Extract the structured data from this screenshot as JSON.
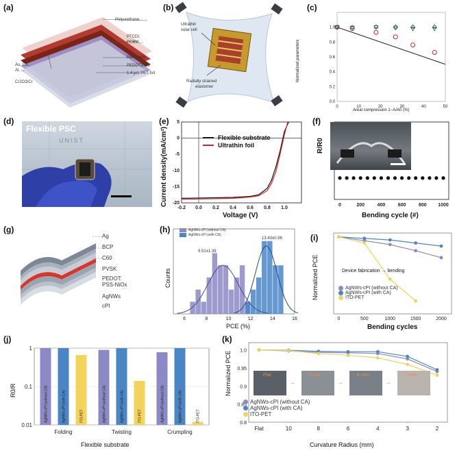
{
  "panels": {
    "a": {
      "label": "(a)",
      "layers": [
        "Polyurethane",
        "PTCDI,",
        "PCBM,...",
        "Perovskite",
        "PEDOT:PSS",
        "1.4 μm PET foil"
      ],
      "electrodes": [
        "Au, Cu,",
        "Al, ...",
        "Cr2O3/Cr"
      ]
    },
    "b": {
      "label": "(b)",
      "texts": [
        "Ultrathin",
        "solar cell",
        "Radially strained",
        "elastomer"
      ]
    },
    "c": {
      "label": "(c)",
      "ylabel": "Normalized parameters",
      "xlabel": "Areal compression 1−A/A0 (%)"
    },
    "d": {
      "label": "(d)",
      "title": "Flexible PSC",
      "watermark": "UNIST"
    },
    "e": {
      "label": "(e)",
      "ylabel": "Current density(mA/cm²)",
      "xlabel": "Voltage (V)",
      "legend": [
        "Flexible substrate",
        "Ultrathin foil"
      ]
    },
    "f": {
      "label": "(f)",
      "ylabel": "R/R0",
      "xlabel": "Bending cycle (#)"
    },
    "g": {
      "label": "(g)",
      "layers": [
        "Ag",
        "BCP",
        "C60",
        "PVSK",
        "PEDOT:",
        "PSS-NiOx",
        "AgNWs",
        "cPI"
      ]
    },
    "h": {
      "label": "(h)",
      "ylabel": "Counts",
      "xlabel": "PCE (%)",
      "legend": [
        "AgNWs-cPI (without CA)",
        "AgNWs-cPI (with CA)"
      ],
      "annot": [
        "9.51±1.39",
        "13.43±0.98"
      ]
    },
    "i": {
      "label": "(i)",
      "ylabel": "Normalized PCE",
      "xlabel": "Bending cycles",
      "annot": "Device fabrication → bending",
      "legend": [
        "AgNWs-cPI (without CA)",
        "AgNWs-cPI (with CA)",
        "ITO-PET"
      ]
    },
    "j": {
      "label": "(j)",
      "ylabel": "R0/R",
      "xlabel": "Flexible substrate",
      "bar_labels": [
        "AgNWs-cPI (without CA)",
        "AgNWs-cPI (with CA)",
        "ITO-PET"
      ]
    },
    "k": {
      "label": "(k)",
      "ylabel": "Normalized PCE",
      "xlabel": "Curvature Radius (mm)",
      "insets": [
        "Flat",
        "8 mm",
        "4 mm",
        "2 mm"
      ],
      "legend": [
        "AgNWs-cPI (without CA)",
        "AgNWs-cPI (with CA)",
        "ITO-PET"
      ]
    }
  },
  "colors": {
    "red": "#d62728",
    "black": "#111111",
    "purple": "#8c89c6",
    "blue": "#4a86c5",
    "yellow": "#f3d35b",
    "gray": "#8a8f95"
  },
  "chart_data": [
    {
      "id": "c",
      "type": "scatter",
      "xlim": [
        0,
        50
      ],
      "ylim": [
        0,
        1.2
      ],
      "x_ticks": [
        0,
        5,
        10,
        15,
        20,
        25,
        30,
        35,
        40,
        45,
        50
      ],
      "y_ticks": [
        0,
        0.2,
        0.4,
        0.6,
        0.8,
        1.0
      ],
      "series": [
        {
          "marker": "line",
          "color": "#111111",
          "x": [
            0,
            50
          ],
          "y": [
            1.0,
            0.5
          ]
        },
        {
          "marker": "circle-open",
          "color": "#d62728",
          "x": [
            0,
            7,
            18,
            27,
            35,
            45
          ],
          "y": [
            1.0,
            0.98,
            0.93,
            0.87,
            0.76,
            0.66
          ]
        },
        {
          "marker": "triangle-open",
          "color": "#4caf50",
          "x": [
            0,
            7,
            18,
            27,
            35,
            45
          ],
          "y": [
            1.0,
            1.0,
            1.01,
            1.01,
            1.01,
            1.01
          ]
        },
        {
          "marker": "triangle-down-open",
          "color": "#1f3a8a",
          "x": [
            0,
            7,
            18,
            27,
            35,
            45
          ],
          "y": [
            1.0,
            0.99,
            1.0,
            0.99,
            0.98,
            0.98
          ]
        },
        {
          "marker": "square-open",
          "color": "#555555",
          "x": [
            0,
            7,
            18,
            27,
            35,
            45
          ],
          "y": [
            1.0,
            1.0,
            1.0,
            1.0,
            1.0,
            1.0
          ]
        }
      ]
    },
    {
      "id": "e",
      "type": "line",
      "xlim": [
        -0.2,
        1.2
      ],
      "ylim": [
        -20,
        5
      ],
      "x_ticks": [
        -0.2,
        0.0,
        0.2,
        0.4,
        0.6,
        0.8,
        1.0
      ],
      "y_ticks": [
        -20,
        -15,
        -10,
        -5,
        0,
        5
      ],
      "series": [
        {
          "name": "Flexible substrate",
          "color": "#111111",
          "x": [
            -0.2,
            0.0,
            0.2,
            0.4,
            0.6,
            0.7,
            0.8,
            0.85,
            0.9,
            0.95,
            1.0,
            1.05
          ],
          "y": [
            -18.6,
            -18.5,
            -18.4,
            -18.3,
            -18.0,
            -17.5,
            -15.5,
            -13.0,
            -9.0,
            -4.0,
            2.0,
            10
          ]
        },
        {
          "name": "Ultrathin foil",
          "color": "#d62728",
          "x": [
            -0.2,
            0.0,
            0.2,
            0.4,
            0.6,
            0.7,
            0.8,
            0.85,
            0.9,
            0.95,
            1.0,
            1.04
          ],
          "y": [
            -18.9,
            -18.8,
            -18.7,
            -18.6,
            -18.2,
            -17.8,
            -16.2,
            -14.0,
            -10.5,
            -5.0,
            1.0,
            10
          ]
        }
      ]
    },
    {
      "id": "f",
      "type": "scatter",
      "xlim": [
        0,
        1000
      ],
      "ylim": [
        0,
        4
      ],
      "x_ticks": [
        0,
        200,
        400,
        600,
        800,
        1000
      ],
      "y_ticks": [],
      "series": [
        {
          "color": "#111111",
          "x": [
            0,
            67,
            133,
            200,
            267,
            333,
            400,
            467,
            533,
            600,
            667,
            733,
            800,
            867,
            933,
            1000
          ],
          "y": [
            1,
            1,
            1,
            1,
            1,
            1,
            1,
            1,
            1,
            1,
            1,
            1,
            1,
            1,
            1,
            1
          ]
        }
      ]
    },
    {
      "id": "h",
      "type": "bar",
      "xlim": [
        5,
        16
      ],
      "ylim": [
        0,
        7
      ],
      "x_ticks": [
        6,
        8,
        10,
        12,
        14,
        16
      ],
      "y_ticks": [],
      "series": [
        {
          "name": "AgNWs-cPI (without CA)",
          "color": "#8c89c6",
          "bin_start": [
            6.5,
            7,
            7.5,
            8,
            8.5,
            9,
            9.5,
            10,
            10.5,
            11,
            11.5
          ],
          "counts": [
            1,
            2,
            1,
            3,
            5,
            4,
            4,
            2,
            3,
            4,
            1
          ]
        },
        {
          "name": "AgNWs-cPI (with CA)",
          "color": "#4a86c5",
          "bin_start": [
            11.5,
            12,
            12.5,
            13,
            13.5,
            14,
            14.5
          ],
          "counts": [
            1,
            2,
            3,
            6,
            6,
            4,
            4
          ]
        }
      ],
      "fits": [
        {
          "mean": 9.51,
          "sd": 1.39,
          "peak": 4.0
        },
        {
          "mean": 13.43,
          "sd": 0.98,
          "peak": 5.6
        }
      ]
    },
    {
      "id": "i",
      "type": "line",
      "xlim": [
        -100,
        2200
      ],
      "ylim": [
        0,
        1.05
      ],
      "x_ticks": [
        0,
        500,
        1000,
        1500,
        2000
      ],
      "y_ticks": [],
      "series": [
        {
          "name": "AgNWs-cPI (without CA)",
          "color": "#8c89c6",
          "x": [
            0,
            500,
            1000,
            1500,
            2000
          ],
          "y": [
            1.0,
            0.95,
            0.9,
            0.82,
            0.73
          ]
        },
        {
          "name": "AgNWs-cPI (with CA)",
          "color": "#4a86c5",
          "x": [
            0,
            500,
            1000,
            1500,
            2000
          ],
          "y": [
            1.0,
            0.98,
            0.96,
            0.92,
            0.88
          ]
        },
        {
          "name": "ITO-PET",
          "color": "#f3d35b",
          "x": [
            0,
            500,
            1000,
            1500
          ],
          "y": [
            1.0,
            0.92,
            0.45,
            0.17
          ]
        }
      ]
    },
    {
      "id": "j",
      "type": "bar",
      "scale": "log",
      "ylim": [
        0.01,
        1
      ],
      "y_ticks": [
        0.01,
        0.1,
        1
      ],
      "categories": [
        "Folding",
        "Twisting",
        "Crumpling"
      ],
      "series": [
        {
          "name": "AgNWs-cPI (without CA)",
          "color": "#8c89c6",
          "values": [
            1.0,
            0.9,
            0.78
          ]
        },
        {
          "name": "AgNWs-cPI (with CA)",
          "color": "#4a86c5",
          "values": [
            1.0,
            1.0,
            1.0
          ]
        },
        {
          "name": "ITO-PET",
          "color": "#f3d35b",
          "values": [
            0.66,
            0.14,
            0.012
          ]
        }
      ]
    },
    {
      "id": "k",
      "type": "line",
      "ylim": [
        0.8,
        1.02
      ],
      "y_ticks": [
        0.8,
        0.85,
        0.9,
        0.95,
        1.0
      ],
      "categories": [
        "Flat",
        "10",
        "8",
        "6",
        "4",
        "3",
        "2"
      ],
      "series": [
        {
          "name": "AgNWs-cPI (without CA)",
          "color": "#8c89c6",
          "values": [
            1.0,
            0.997,
            0.993,
            0.992,
            0.99,
            0.975,
            0.94
          ]
        },
        {
          "name": "AgNWs-cPI (with CA)",
          "color": "#4a86c5",
          "values": [
            1.0,
            0.999,
            0.996,
            0.995,
            0.995,
            0.982,
            0.945
          ]
        },
        {
          "name": "ITO-PET",
          "color": "#f3d35b",
          "values": [
            1.0,
            0.998,
            0.99,
            0.985,
            0.978,
            0.96,
            0.93
          ]
        }
      ]
    }
  ]
}
